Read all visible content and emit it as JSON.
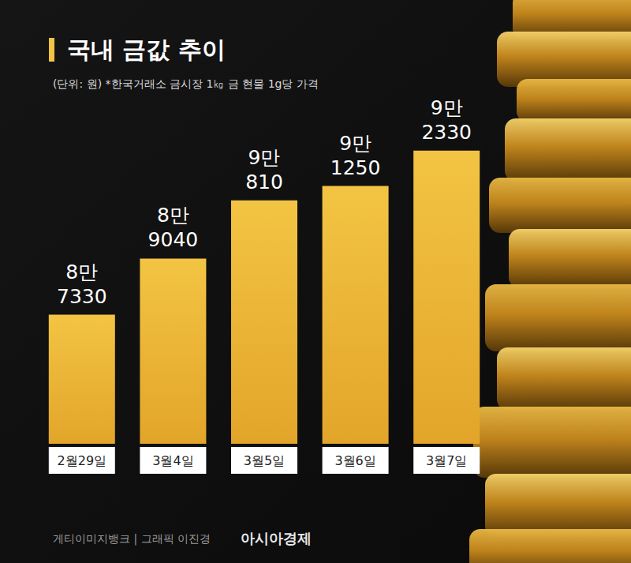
{
  "chart_data": {
    "type": "bar",
    "title": "국내 금값 추이",
    "subtitle": "(단위: 원) *한국거래소 금시장 1㎏ 금 현물 1g당 가격",
    "categories": [
      "2월29일",
      "3월4일",
      "3월5일",
      "3월6일",
      "3월7일"
    ],
    "values": [
      87330,
      89040,
      90810,
      91250,
      92330
    ],
    "value_labels": [
      "8만\n7330",
      "8만\n9040",
      "9만\n810",
      "9만\n1250",
      "9만\n2330"
    ],
    "color": "#f3c443",
    "ylim": [
      83400,
      93500
    ],
    "yticks": [
      83400,
      93500
    ],
    "grid": false,
    "tick_labels": "x",
    "data_labels": true,
    "source": "게티이미지뱅크 | 그래픽 이진경",
    "publisher": "아시아경제"
  }
}
